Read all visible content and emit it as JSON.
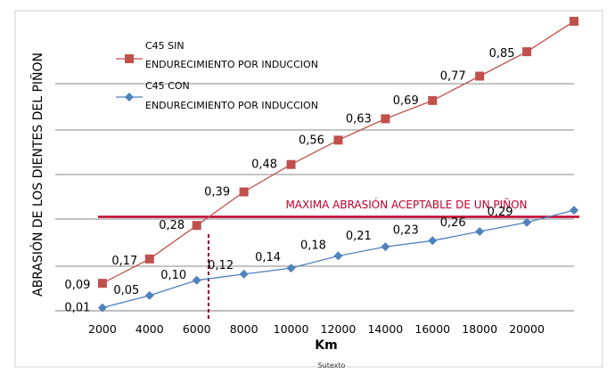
{
  "chart_data": {
    "type": "line",
    "xlabel": "Km",
    "ylabel": "ABRASIÓN DE LOS DIENTES DEL PIÑON",
    "caption": "Sutexto",
    "x_tick_labels": [
      "2000",
      "4000",
      "6000",
      "8000",
      "10000",
      "12000",
      "14000",
      "16000",
      "18000",
      "20000"
    ],
    "ylim": [
      0,
      0.9
    ],
    "grid": true,
    "legend": "top-left",
    "series": [
      {
        "name_lines": [
          "C45 SIN",
          "ENDURECIMIENTO POR INDUCCION"
        ],
        "marker": "square",
        "color": "#c0504d",
        "x": [
          2000,
          4000,
          6000,
          8000,
          10000,
          12000,
          14000,
          16000,
          18000,
          20000,
          22000
        ],
        "values": [
          0.09,
          0.17,
          0.28,
          0.39,
          0.48,
          0.56,
          0.63,
          0.69,
          0.77,
          0.85,
          0.95
        ],
        "labels": [
          "0,09",
          "0,17",
          "0,28",
          "0,39",
          "0,48",
          "0,56",
          "0,63",
          "0,69",
          "0,77",
          "0,85"
        ]
      },
      {
        "name_lines": [
          "C45 CON",
          "ENDURECIMIENTO POR INDUCCION"
        ],
        "marker": "diamond",
        "color": "#4f81bd",
        "x": [
          2000,
          4000,
          6000,
          8000,
          10000,
          12000,
          14000,
          16000,
          18000,
          20000,
          22000
        ],
        "values": [
          0.01,
          0.05,
          0.1,
          0.12,
          0.14,
          0.18,
          0.21,
          0.23,
          0.26,
          0.29,
          0.33
        ],
        "labels": [
          "0,01",
          "0,05",
          "0,10",
          "0,12",
          "0,14",
          "0,18",
          "0,21",
          "0,23",
          "0,26",
          "0,29"
        ]
      }
    ],
    "threshold": {
      "label": "MAXIMA ABRASIÓN ACEPTABLE DE UN PIÑON",
      "value": 0.26,
      "color": "#c0002a"
    },
    "marker_x": 6500,
    "marker_color": "#8b0030"
  }
}
